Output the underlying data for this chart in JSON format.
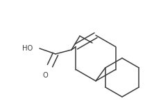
{
  "background": "#ffffff",
  "line_color": "#3a3a3a",
  "line_width": 1.1,
  "text_color": "#3a3a3a",
  "font_size": 7.2,
  "figsize": [
    2.09,
    1.59
  ],
  "dpi": 100,
  "HO_label": "HO",
  "O_label": "O"
}
